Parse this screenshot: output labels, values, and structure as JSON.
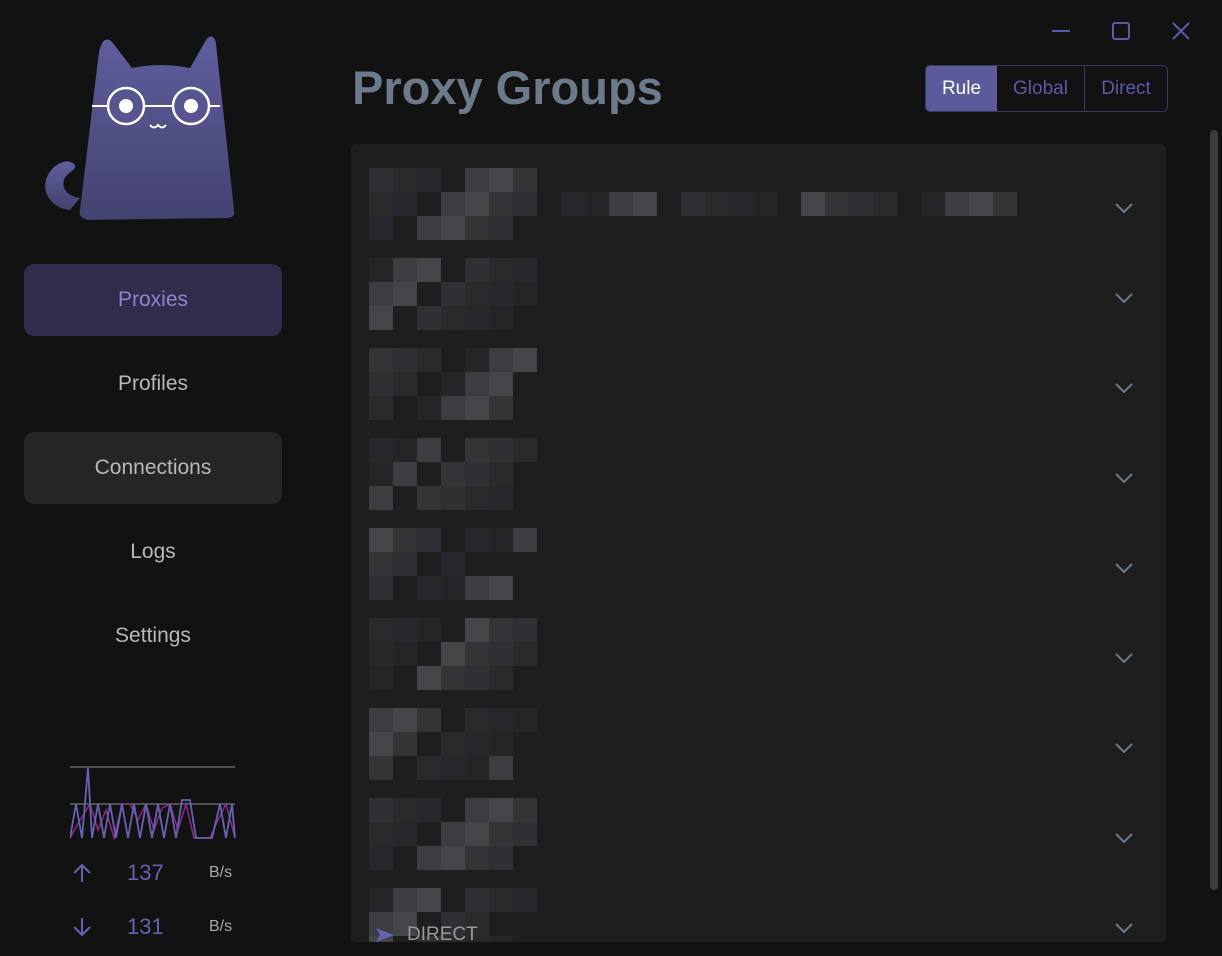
{
  "window_controls": {
    "minimize": "minimize",
    "maximize": "maximize",
    "close": "close"
  },
  "sidebar": {
    "items": [
      {
        "label": "Proxies",
        "state": "active"
      },
      {
        "label": "Profiles"
      },
      {
        "label": "Connections",
        "state": "hover"
      },
      {
        "label": "Logs"
      },
      {
        "label": "Settings"
      }
    ],
    "traffic": {
      "up_value": "137",
      "up_unit": "B/s",
      "down_value": "131",
      "down_unit": "B/s"
    }
  },
  "header": {
    "title": "Proxy Groups"
  },
  "mode_selector": {
    "options": [
      "Rule",
      "Global",
      "Direct"
    ],
    "selected": "Rule"
  },
  "proxy_groups": {
    "row_count": 9,
    "last_visible_proxy": "DIRECT"
  },
  "colors": {
    "accent": "#5b5b9c",
    "background": "#121212",
    "card": "#1e1e1e"
  }
}
